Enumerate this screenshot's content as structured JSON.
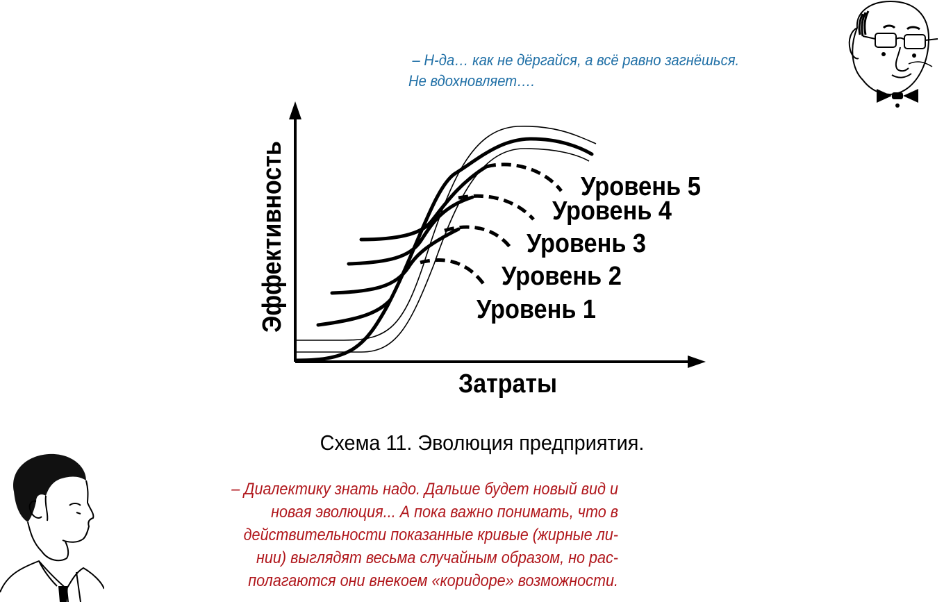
{
  "top_remark": {
    "line1": "– Н-да… как не дёргайся,  а всё равно загнёшься.",
    "line2": "Не вдохновляет…."
  },
  "diagram": {
    "y_axis_label": "Эффективность",
    "x_axis_label": "Затраты",
    "levels": [
      "Уровень 1",
      "Уровень 2",
      "Уровень 3",
      "Уровень 4",
      "Уровень 5"
    ]
  },
  "caption": "Схема 11. Эволюция предприятия.",
  "bottom_remark": {
    "lines": [
      "– Диалектику  знать надо. Дальше будет новый вид   и",
      "новая эволюция... А пока важно понимать, что в",
      "действительности  показанные кривые (жирные ли-",
      "нии) выглядят весьма случайным образом, но рас-",
      "полагаются  они внекоем «коридоре» возможности."
    ]
  },
  "colors": {
    "top_remark": "#1f6fa6",
    "bottom_remark": "#b0161b",
    "ink": "#000000"
  },
  "icons": {
    "old_man": "bald-professor-with-glasses-and-bow-tie",
    "young_man": "young-man-profile-portrait"
  }
}
